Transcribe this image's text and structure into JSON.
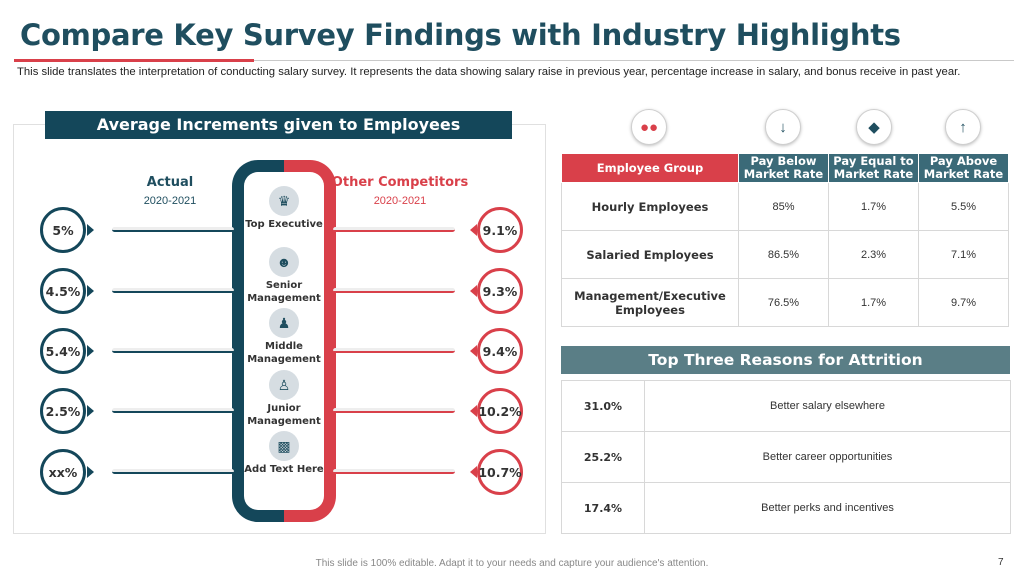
{
  "header": {
    "title": "Compare Key Survey Findings with Industry Highlights",
    "subtitle": "This slide translates the interpretation of conducting salary survey. It represents the data showing salary raise in previous year, percentage increase in salary, and bonus receive in past year."
  },
  "increments": {
    "title": "Average Increments given to Employees",
    "actual_label": "Actual",
    "actual_period": "2020-2021",
    "competitor_label": "Other Competitors",
    "competitor_period": "2020-2021",
    "rows": [
      {
        "level": "Top Executive",
        "actual": "5%",
        "competitor": "9.1%",
        "icon": "crown-person-icon"
      },
      {
        "level": "Senior Management",
        "actual": "4.5%",
        "competitor": "9.3%",
        "icon": "manager-icon"
      },
      {
        "level": "Middle Management",
        "actual": "5.4%",
        "competitor": "9.4%",
        "icon": "team-lead-icon"
      },
      {
        "level": "Junior Management",
        "actual": "2.5%",
        "competitor": "10.2%",
        "icon": "group-icon"
      },
      {
        "level": "Add Text Here",
        "actual": "xx%",
        "competitor": "10.7%",
        "icon": "bar-people-icon"
      }
    ]
  },
  "top_icons": [
    "team-icon",
    "pay-below-icon",
    "pay-equal-icon",
    "pay-above-icon"
  ],
  "pay_table": {
    "headers": [
      "Employee Group",
      "Pay Below Market Rate",
      "Pay Equal to Market Rate",
      "Pay Above Market Rate"
    ],
    "rows": [
      [
        "Hourly Employees",
        "85%",
        "1.7%",
        "5.5%"
      ],
      [
        "Salaried Employees",
        "86.5%",
        "2.3%",
        "7.1%"
      ],
      [
        "Management/Executive Employees",
        "76.5%",
        "1.7%",
        "9.7%"
      ]
    ]
  },
  "attrition": {
    "title": "Top Three Reasons for Attrition",
    "rows": [
      [
        "31.0%",
        "Better salary elsewhere"
      ],
      [
        "25.2%",
        "Better career opportunities"
      ],
      [
        "17.4%",
        "Better perks and incentives"
      ]
    ]
  },
  "footer": {
    "note": "This slide is 100% editable. Adapt it to your needs and capture your audience's attention.",
    "page": "7"
  },
  "colors": {
    "navy": "#14475a",
    "red": "#d9404a",
    "teal": "#3b6a78",
    "slate": "#5a7e86"
  }
}
